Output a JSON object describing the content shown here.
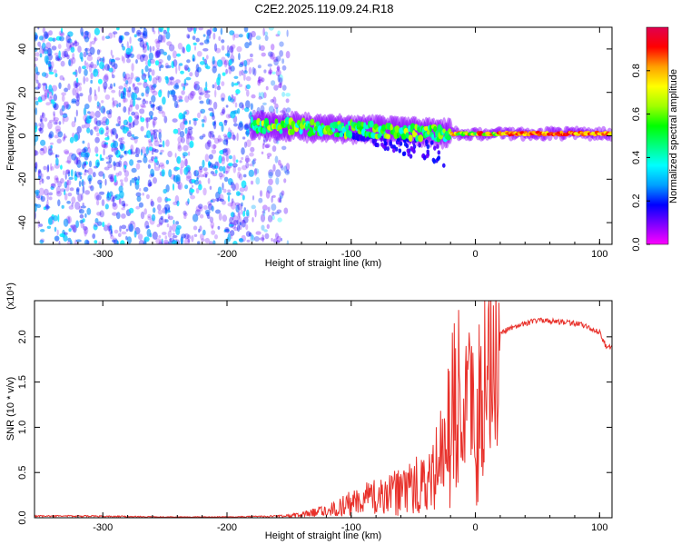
{
  "title": "C2E2.2025.119.09.24.R18",
  "colors": {
    "snr_line": "#e8302a",
    "spectro_low": "#8a2be2",
    "spectro_high": "#ff0000",
    "axis": "#000000"
  },
  "colormap": [
    "#ff00ff",
    "#8000ff",
    "#0000ff",
    "#00a0ff",
    "#00ffff",
    "#00ff80",
    "#00ff00",
    "#a0ff00",
    "#ffff00",
    "#ffa000",
    "#ff0000",
    "#e00050"
  ],
  "colorbar": {
    "label": "Normalized spectral amplitude",
    "ticks": [
      "0.0",
      "0.2",
      "0.4",
      "0.6",
      "0.8"
    ],
    "range": [
      0,
      1
    ]
  },
  "chart_data": [
    {
      "type": "heatmap",
      "xlabel": "Height of straight line (km)",
      "ylabel": "Frequency (Hz)",
      "xlim": [
        -355,
        110
      ],
      "ylim": [
        -50,
        50
      ],
      "xticks": [
        "-300",
        "-200",
        "-100",
        "0",
        "100"
      ],
      "yticks": [
        "-40",
        "-20",
        "0",
        "20",
        "40"
      ],
      "noise_region_x": [
        -355,
        -180
      ],
      "signal_band": [
        {
          "x": -180,
          "f": 5
        },
        {
          "x": -140,
          "f": 4
        },
        {
          "x": -100,
          "f": 3
        },
        {
          "x": -60,
          "f": 2
        },
        {
          "x": -20,
          "f": 1
        },
        {
          "x": 0,
          "f": 1
        },
        {
          "x": 50,
          "f": 1
        },
        {
          "x": 100,
          "f": 1
        },
        {
          "x": 110,
          "f": 1
        }
      ]
    },
    {
      "type": "line",
      "xlabel": "Height of straight line (km)",
      "ylabel": "SNR (10 * v/v)",
      "y_multiplier": "(x10⁴)",
      "xlim": [
        -355,
        110
      ],
      "ylim": [
        0,
        2.4
      ],
      "xticks": [
        "-300",
        "-200",
        "-100",
        "0",
        "100"
      ],
      "yticks": [
        "0.0",
        "0.5",
        "1.0",
        "1.5",
        "2.0"
      ],
      "series": [
        {
          "x": [
            -355,
            -300,
            -250,
            -200,
            -160,
            -140,
            -120,
            -100,
            -80,
            -60,
            -40,
            -30,
            -20,
            -15,
            -12,
            -10,
            -5,
            0,
            10,
            20,
            30,
            40,
            50,
            60,
            70,
            80,
            90,
            100,
            105,
            110
          ],
          "y": [
            0.02,
            0.02,
            0.01,
            0.01,
            0.02,
            0.05,
            0.12,
            0.25,
            0.35,
            0.45,
            0.6,
            0.85,
            1.5,
            2.4,
            1.4,
            1.6,
            1.8,
            1.9,
            2.0,
            2.05,
            2.1,
            2.15,
            2.18,
            2.18,
            2.16,
            2.15,
            2.12,
            2.05,
            1.9,
            1.88
          ]
        }
      ]
    }
  ]
}
